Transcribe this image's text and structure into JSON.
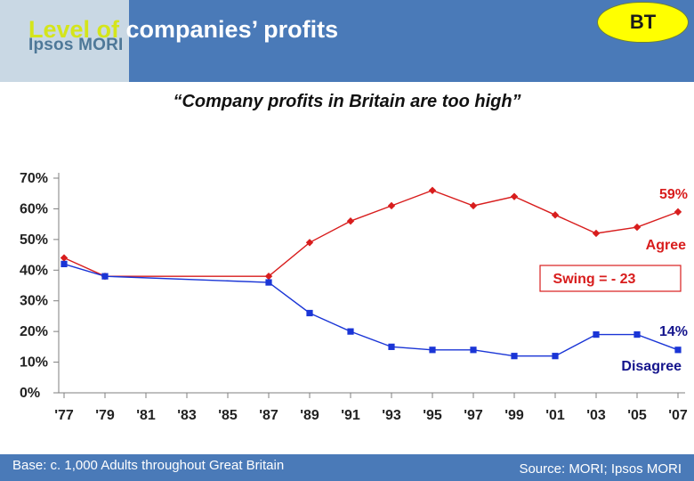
{
  "header": {
    "title_overlap": "Level of",
    "title_rest": " companies’ profits",
    "logo": "Ipsos MORI",
    "badge": "BT"
  },
  "subtitle": "“Company profits in Britain are too high”",
  "footer": {
    "base": "Base:  c. 1,000 Adults throughout Great Britain",
    "source": "Source: MORI; Ipsos MORI"
  },
  "colors": {
    "agree": "#d81d1d",
    "disagree": "#1a35d6",
    "header": "#4a7ab8",
    "badge": "#ffff00",
    "swing_border": "#d81d1d"
  },
  "chart_data": {
    "type": "line",
    "y_ticks": [
      "0%",
      "10%",
      "20%",
      "30%",
      "40%",
      "50%",
      "60%",
      "70%"
    ],
    "x_ticks": [
      "'77",
      "'79",
      "'81",
      "'83",
      "'85",
      "'87",
      "'89",
      "'91",
      "'93",
      "'95",
      "'97",
      "'99",
      "'01",
      "'03",
      "'05",
      "'07"
    ],
    "ylim": [
      0,
      70
    ],
    "xlim": [
      1977,
      2007
    ],
    "grid": false,
    "series": [
      {
        "name": "Agree",
        "color": "#d81d1d",
        "marker": "diamond",
        "points": [
          [
            1977,
            44
          ],
          [
            1979,
            38
          ],
          [
            1987,
            38
          ],
          [
            1989,
            49
          ],
          [
            1991,
            56
          ],
          [
            1993,
            61
          ],
          [
            1995,
            66
          ],
          [
            1997,
            61
          ],
          [
            1999,
            64
          ],
          [
            2001,
            58
          ],
          [
            2003,
            52
          ],
          [
            2005,
            54
          ],
          [
            2007,
            59
          ]
        ]
      },
      {
        "name": "Disagree",
        "color": "#1a35d6",
        "marker": "square",
        "points": [
          [
            1977,
            42
          ],
          [
            1979,
            38
          ],
          [
            1987,
            36
          ],
          [
            1989,
            26
          ],
          [
            1991,
            20
          ],
          [
            1993,
            15
          ],
          [
            1995,
            14
          ],
          [
            1997,
            14
          ],
          [
            1999,
            12
          ],
          [
            2001,
            12
          ],
          [
            2003,
            19
          ],
          [
            2005,
            19
          ],
          [
            2007,
            14
          ]
        ]
      }
    ],
    "annotations": {
      "agree_end": "59%",
      "disagree_end": "14%",
      "swing": "Swing = - 23"
    }
  }
}
